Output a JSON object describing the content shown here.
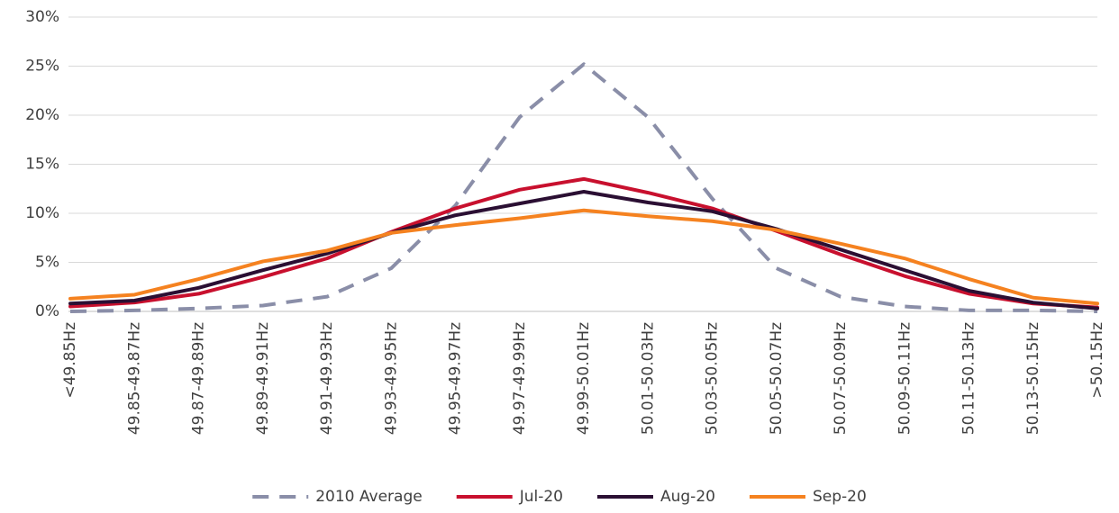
{
  "chart_data": {
    "type": "line",
    "categories": [
      "<49.85Hz",
      "49.85-49.87Hz",
      "49.87-49.89Hz",
      "49.89-49.91Hz",
      "49.91-49.93Hz",
      "49.93-49.95Hz",
      "49.95-49.97Hz",
      "49.97-49.99Hz",
      "49.99-50.01Hz",
      "50.01-50.03Hz",
      "50.03-50.05Hz",
      "50.05-50.07Hz",
      "50.07-50.09Hz",
      "50.09-50.11Hz",
      "50.11-50.13Hz",
      "50.13-50.15Hz",
      ">50.15Hz"
    ],
    "series": [
      {
        "name": "2010 Average",
        "color": "#8a8ea8",
        "dashed": true,
        "values": [
          0,
          0.1,
          0.3,
          0.6,
          1.5,
          4.4,
          10.8,
          19.8,
          25.2,
          19.8,
          11.5,
          4.4,
          1.5,
          0.5,
          0.1,
          0.1,
          0
        ]
      },
      {
        "name": "Jul-20",
        "color": "#c8102e",
        "values": [
          0.5,
          0.9,
          1.8,
          3.5,
          5.4,
          8.1,
          10.5,
          12.4,
          13.5,
          12.1,
          10.5,
          8.2,
          5.8,
          3.6,
          1.8,
          0.8,
          0.4
        ]
      },
      {
        "name": "Aug-20",
        "color": "#2b0f33",
        "values": [
          0.8,
          1.1,
          2.4,
          4.2,
          5.9,
          8.0,
          9.8,
          11.0,
          12.2,
          11.1,
          10.2,
          8.4,
          6.3,
          4.2,
          2.1,
          0.9,
          0.3
        ]
      },
      {
        "name": "Sep-20",
        "color": "#f58220",
        "values": [
          1.3,
          1.7,
          3.3,
          5.1,
          6.2,
          8.0,
          8.8,
          9.5,
          10.3,
          9.7,
          9.2,
          8.3,
          6.9,
          5.4,
          3.3,
          1.4,
          0.8
        ]
      }
    ],
    "ylim": [
      0,
      30
    ],
    "yticks": [
      {
        "value": 0,
        "label": "0%"
      },
      {
        "value": 5,
        "label": "5%"
      },
      {
        "value": 10,
        "label": "10%"
      },
      {
        "value": 15,
        "label": "15%"
      },
      {
        "value": 20,
        "label": "20%"
      },
      {
        "value": 25,
        "label": "25%"
      },
      {
        "value": 30,
        "label": "30%"
      }
    ],
    "grid": true,
    "legend": "bottom"
  }
}
